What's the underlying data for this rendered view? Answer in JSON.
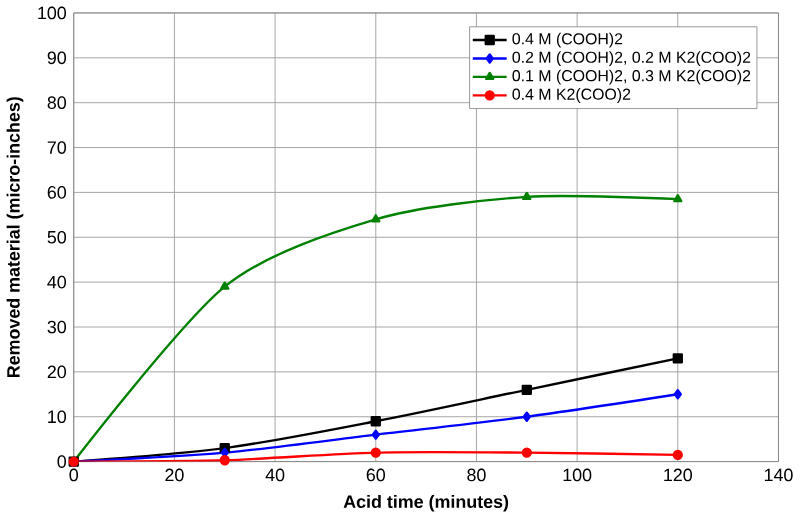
{
  "chart_data": {
    "type": "line",
    "xlabel": "Acid time   (minutes)",
    "ylabel": "Removed material   (micro-inches)",
    "x": [
      0,
      30,
      60,
      90,
      120
    ],
    "xlim": [
      0,
      140
    ],
    "xticks": [
      0,
      20,
      40,
      60,
      80,
      100,
      120,
      140
    ],
    "ylim": [
      0,
      100
    ],
    "yticks": [
      0,
      10,
      20,
      30,
      40,
      50,
      60,
      70,
      80,
      90,
      100
    ],
    "grid": true,
    "legend": "top right",
    "series": [
      {
        "name": "0.4 M (COOH)2",
        "color": "#000000",
        "marker": "square",
        "values": [
          0,
          3,
          9,
          16,
          23
        ]
      },
      {
        "name": "0.2 M (COOH)2, 0.2 M K2(COO)2",
        "color": "#0000ff",
        "marker": "diamond",
        "values": [
          0,
          2,
          6,
          10,
          15
        ]
      },
      {
        "name": "0.1 M (COOH)2, 0.3 M K2(COO)2",
        "color": "#008000",
        "marker": "triangle",
        "values": [
          0,
          39,
          54,
          59,
          58.5
        ]
      },
      {
        "name": "0.4 M K2(COO)2",
        "color": "#ff0000",
        "marker": "circle",
        "values": [
          0,
          0.3,
          2,
          2,
          1.5
        ]
      }
    ]
  }
}
